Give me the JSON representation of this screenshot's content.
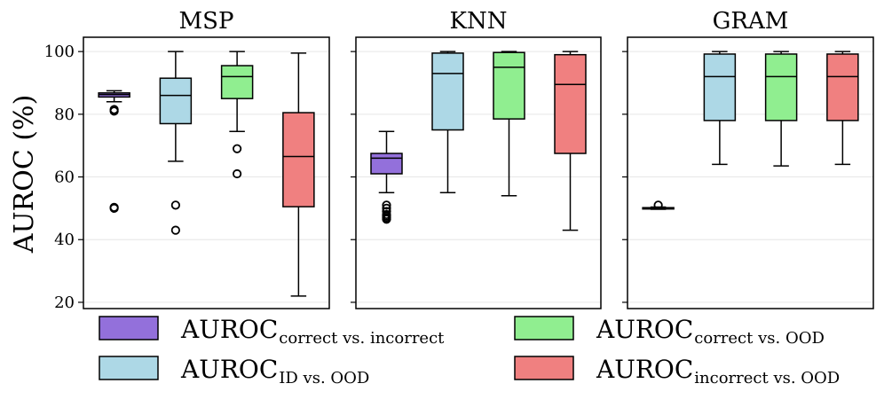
{
  "chart_data": {
    "type": "box",
    "ylabel": "AUROC (%)",
    "ylim": [
      18,
      104
    ],
    "yticks": [
      20,
      40,
      60,
      80,
      100
    ],
    "grid": "horizontal",
    "legend_position": "bottom",
    "series": [
      {
        "key": "cvi",
        "main": "AUROC",
        "sub": "correct vs. incorrect",
        "color": "#9370DB"
      },
      {
        "key": "ivo",
        "main": "AUROC",
        "sub": "ID vs. OOD",
        "color": "#ADD8E6"
      },
      {
        "key": "cvo",
        "main": "AUROC",
        "sub": "correct vs. OOD",
        "color": "#90EE90"
      },
      {
        "key": "incvo",
        "main": "AUROC",
        "sub": "incorrect vs. OOD",
        "color": "#F08080"
      }
    ],
    "panels": [
      {
        "title": "MSP",
        "boxes": [
          {
            "series": "cvi",
            "whislo": 84,
            "q1": 85.5,
            "med": 86.3,
            "q3": 86.8,
            "whishi": 87.5,
            "fliers": [
              81,
              81.5,
              50,
              50.3
            ]
          },
          {
            "series": "ivo",
            "whislo": 65,
            "q1": 77,
            "med": 86,
            "q3": 91.5,
            "whishi": 100,
            "fliers": [
              51,
              43
            ]
          },
          {
            "series": "cvo",
            "whislo": 74.5,
            "q1": 85,
            "med": 92,
            "q3": 95.5,
            "whishi": 100,
            "fliers": [
              69,
              61
            ]
          },
          {
            "series": "incvo",
            "whislo": 22,
            "q1": 50.5,
            "med": 66.5,
            "q3": 80.5,
            "whishi": 99.5,
            "fliers": []
          }
        ]
      },
      {
        "title": "KNN",
        "boxes": [
          {
            "series": "cvi",
            "whislo": 55,
            "q1": 61,
            "med": 66,
            "q3": 67.5,
            "whishi": 74.5,
            "fliers": [
              51,
              50,
              49,
              48,
              47.5,
              47,
              46.5
            ]
          },
          {
            "series": "ivo",
            "whislo": 55,
            "q1": 75,
            "med": 93,
            "q3": 99.5,
            "whishi": 100,
            "fliers": []
          },
          {
            "series": "cvo",
            "whislo": 54,
            "q1": 78.5,
            "med": 95,
            "q3": 99.7,
            "whishi": 100,
            "fliers": []
          },
          {
            "series": "incvo",
            "whislo": 43,
            "q1": 67.5,
            "med": 89.5,
            "q3": 99,
            "whishi": 100,
            "fliers": []
          }
        ]
      },
      {
        "title": "GRAM",
        "boxes": [
          {
            "series": "cvi",
            "whislo": 49.7,
            "q1": 49.8,
            "med": 50,
            "q3": 50.2,
            "whishi": 50.4,
            "fliers": [
              51
            ]
          },
          {
            "series": "ivo",
            "whislo": 64,
            "q1": 78,
            "med": 92,
            "q3": 99.2,
            "whishi": 100,
            "fliers": []
          },
          {
            "series": "cvo",
            "whislo": 63.5,
            "q1": 78,
            "med": 92,
            "q3": 99.2,
            "whishi": 100,
            "fliers": []
          },
          {
            "series": "incvo",
            "whislo": 64,
            "q1": 78,
            "med": 92,
            "q3": 99.2,
            "whishi": 100,
            "fliers": []
          }
        ]
      }
    ]
  }
}
